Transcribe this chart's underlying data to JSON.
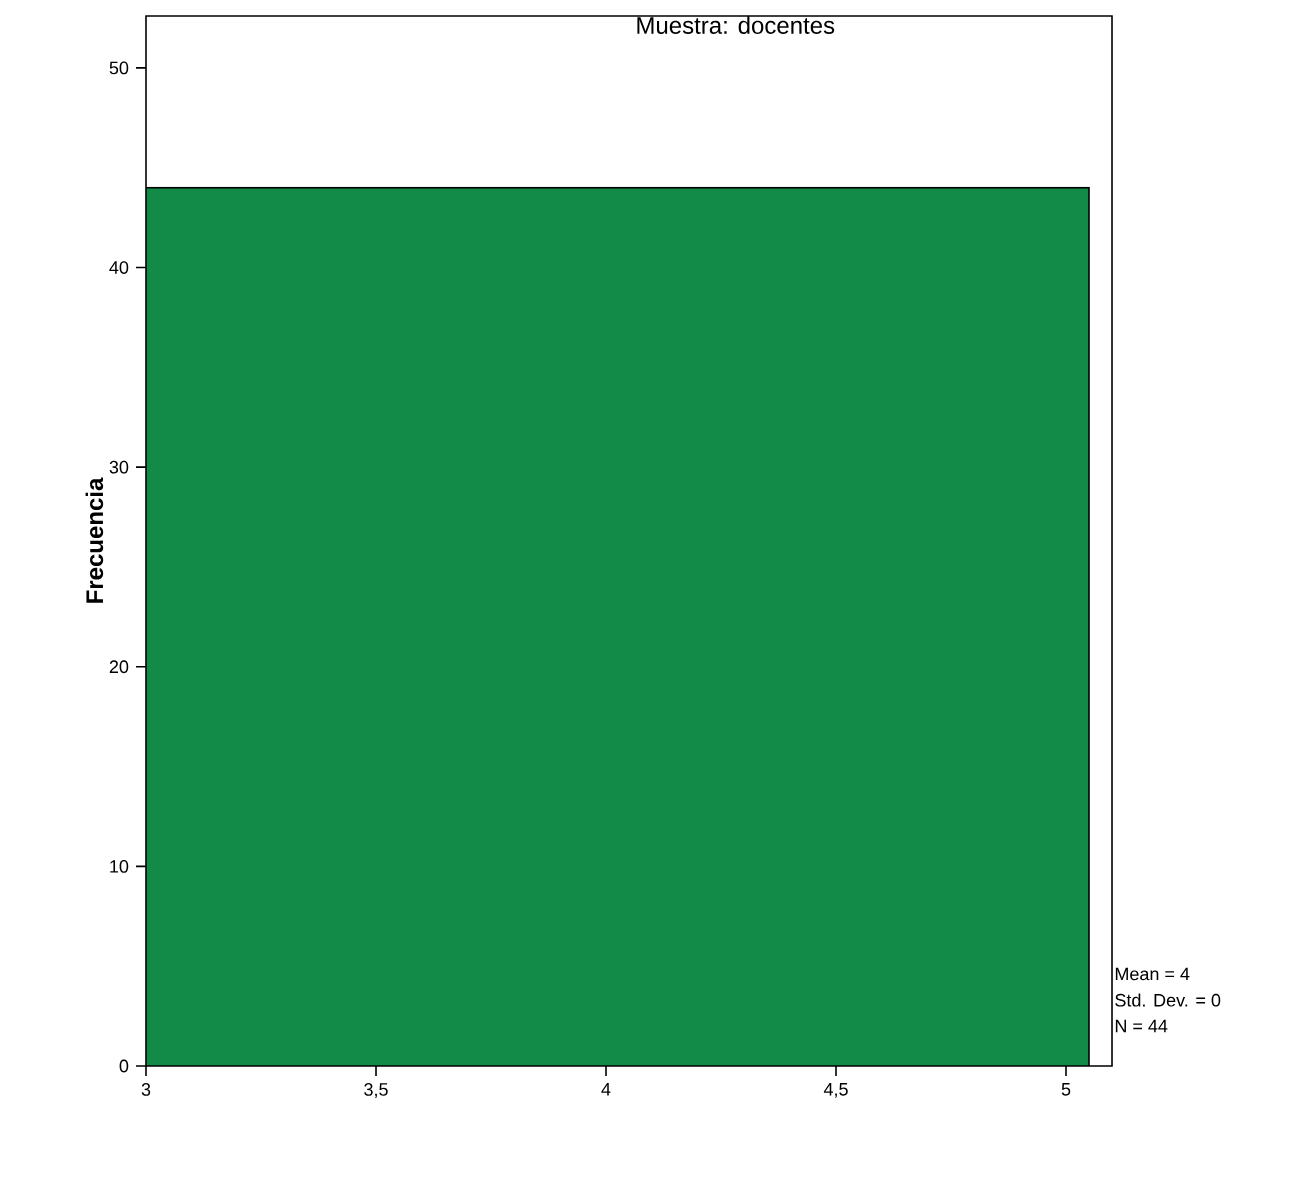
{
  "chart_data": {
    "type": "histogram",
    "title": "Muestra: docentes",
    "ylabel": "Frecuencia",
    "bins": [
      3,
      5.05
    ],
    "values": [
      44
    ],
    "color": "#118b47",
    "xlim": [
      3,
      5.1
    ],
    "xticks": [
      3,
      {
        "value": 3.5,
        "label": "3,5"
      },
      4,
      {
        "value": 4.5,
        "label": "4,5"
      },
      5
    ],
    "ylim": [
      0,
      52.6
    ],
    "yticks": [
      0,
      10,
      20,
      30,
      40,
      50
    ],
    "grid": false,
    "annotations": [
      "Mean = 4",
      "Std. Dev. = 0",
      "N = 44"
    ]
  }
}
